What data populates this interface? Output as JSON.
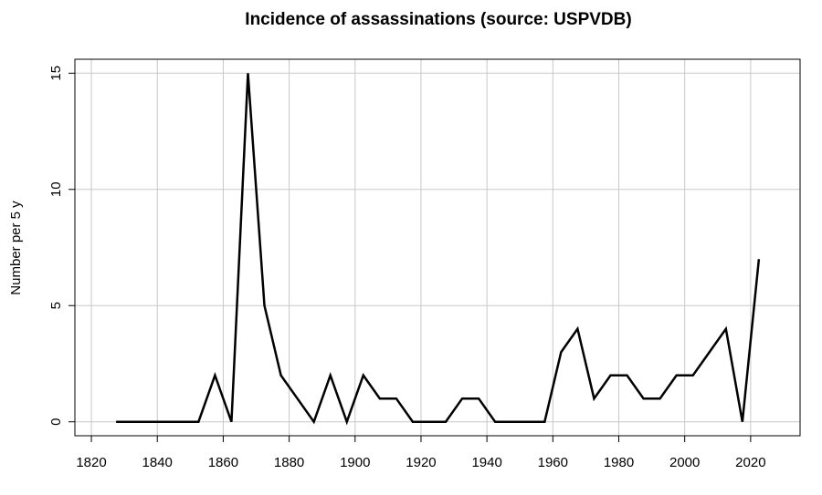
{
  "chart_data": {
    "type": "line",
    "title": "Incidence of assassinations (source: USPVDB)",
    "y_label": "Number per 5 y",
    "x": [
      1827.5,
      1832.5,
      1837.5,
      1842.5,
      1847.5,
      1852.5,
      1857.5,
      1862.5,
      1867.5,
      1872.5,
      1877.5,
      1882.5,
      1887.5,
      1892.5,
      1897.5,
      1902.5,
      1907.5,
      1912.5,
      1917.5,
      1922.5,
      1927.5,
      1932.5,
      1937.5,
      1942.5,
      1947.5,
      1952.5,
      1957.5,
      1962.5,
      1967.5,
      1972.5,
      1977.5,
      1982.5,
      1987.5,
      1992.5,
      1997.5,
      2002.5,
      2007.5,
      2012.5,
      2017.5,
      2022.5
    ],
    "series": [
      {
        "color": "#000000",
        "values": [
          0,
          0,
          0,
          0,
          0,
          0,
          2,
          0,
          15,
          5,
          2,
          1,
          0,
          2,
          0,
          2,
          1,
          1,
          0,
          0,
          0,
          1,
          1,
          0,
          0,
          0,
          0,
          3,
          4,
          1,
          2,
          2,
          1,
          1,
          2,
          2,
          3,
          4,
          0,
          7
        ]
      }
    ],
    "xlim": [
      1815,
      2035
    ],
    "xticks": [
      1820,
      1840,
      1860,
      1880,
      1900,
      1920,
      1940,
      1960,
      1980,
      2000,
      2020
    ],
    "ylim": [
      -0.6,
      15.6
    ],
    "yticks": [
      0,
      5,
      10,
      15
    ],
    "grid": true
  }
}
